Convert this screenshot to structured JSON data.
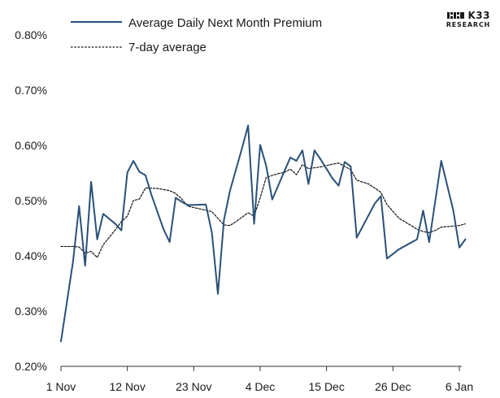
{
  "brand": {
    "name": "K33",
    "sub": "RESEARCH"
  },
  "colors": {
    "series1": "#2a5078",
    "series2": "#111111",
    "axis": "#333333"
  },
  "chart_data": {
    "type": "line",
    "title": "",
    "xlabel": "",
    "ylabel": "",
    "ylim": [
      0.002,
      0.008
    ],
    "y_ticks": [
      0.002,
      0.003,
      0.004,
      0.005,
      0.006,
      0.007,
      0.008
    ],
    "y_tick_labels": [
      "0.20%",
      "0.30%",
      "0.40%",
      "0.50%",
      "0.60%",
      "0.70%",
      "0.80%"
    ],
    "x_ticks": [
      1,
      12,
      23,
      34,
      45,
      56,
      67
    ],
    "x_tick_labels": [
      "1 Nov",
      "12 Nov",
      "23 Nov",
      "4 Dec",
      "15 Dec",
      "26 Dec",
      "6 Jan"
    ],
    "x_unit": "day index (1 Nov = 1)",
    "legend_position": "top-left",
    "series": [
      {
        "name": "Average Daily Next Month Premium",
        "style": "solid",
        "points": [
          [
            1,
            0.00245
          ],
          [
            3,
            0.0039
          ],
          [
            4,
            0.0049
          ],
          [
            5,
            0.00382
          ],
          [
            6,
            0.00534
          ],
          [
            7,
            0.0043
          ],
          [
            8,
            0.00476
          ],
          [
            10,
            0.00458
          ],
          [
            11,
            0.00446
          ],
          [
            12,
            0.00551
          ],
          [
            13,
            0.00572
          ],
          [
            14,
            0.00552
          ],
          [
            15,
            0.00546
          ],
          [
            16,
            0.0051
          ],
          [
            18,
            0.00448
          ],
          [
            19,
            0.00425
          ],
          [
            20,
            0.00505
          ],
          [
            21,
            0.00498
          ],
          [
            22,
            0.00492
          ],
          [
            25,
            0.00493
          ],
          [
            26,
            0.00442
          ],
          [
            27,
            0.00331
          ],
          [
            28,
            0.00465
          ],
          [
            29,
            0.00518
          ],
          [
            31,
            0.00595
          ],
          [
            32,
            0.00636
          ],
          [
            33,
            0.00458
          ],
          [
            34,
            0.00601
          ],
          [
            35,
            0.00563
          ],
          [
            36,
            0.00502
          ],
          [
            38,
            0.00553
          ],
          [
            39,
            0.00578
          ],
          [
            40,
            0.00572
          ],
          [
            41,
            0.00591
          ],
          [
            42,
            0.0053
          ],
          [
            43,
            0.00591
          ],
          [
            44,
            0.00575
          ],
          [
            46,
            0.0054
          ],
          [
            47,
            0.00527
          ],
          [
            48,
            0.0057
          ],
          [
            49,
            0.00562
          ],
          [
            50,
            0.00433
          ],
          [
            53,
            0.00495
          ],
          [
            54,
            0.00508
          ],
          [
            55,
            0.00395
          ],
          [
            57,
            0.00412
          ],
          [
            60,
            0.0043
          ],
          [
            61,
            0.00482
          ],
          [
            62,
            0.00425
          ],
          [
            64,
            0.00572
          ],
          [
            66,
            0.00482
          ],
          [
            67,
            0.00415
          ],
          [
            68,
            0.0043
          ]
        ]
      },
      {
        "name": "7-day average",
        "style": "dashed",
        "points": [
          [
            1,
            0.00417
          ],
          [
            3,
            0.00417
          ],
          [
            4,
            0.00416
          ],
          [
            5,
            0.00405
          ],
          [
            6,
            0.00408
          ],
          [
            7,
            0.00397
          ],
          [
            8,
            0.0042
          ],
          [
            10,
            0.00447
          ],
          [
            11,
            0.00462
          ],
          [
            12,
            0.00472
          ],
          [
            13,
            0.005
          ],
          [
            14,
            0.00503
          ],
          [
            15,
            0.00523
          ],
          [
            17,
            0.00522
          ],
          [
            19,
            0.00518
          ],
          [
            20,
            0.00513
          ],
          [
            21,
            0.00503
          ],
          [
            22,
            0.0049
          ],
          [
            24,
            0.00485
          ],
          [
            26,
            0.0048
          ],
          [
            27,
            0.00468
          ],
          [
            28,
            0.00456
          ],
          [
            29,
            0.00455
          ],
          [
            30,
            0.00462
          ],
          [
            32,
            0.00478
          ],
          [
            33,
            0.00472
          ],
          [
            34,
            0.00505
          ],
          [
            35,
            0.00542
          ],
          [
            37,
            0.00549
          ],
          [
            38,
            0.00551
          ],
          [
            39,
            0.00557
          ],
          [
            40,
            0.00547
          ],
          [
            41,
            0.00565
          ],
          [
            42,
            0.00558
          ],
          [
            44,
            0.00561
          ],
          [
            46,
            0.00566
          ],
          [
            47,
            0.00568
          ],
          [
            48,
            0.00562
          ],
          [
            49,
            0.00556
          ],
          [
            50,
            0.00537
          ],
          [
            52,
            0.0053
          ],
          [
            54,
            0.00515
          ],
          [
            55,
            0.00493
          ],
          [
            57,
            0.00468
          ],
          [
            59,
            0.00455
          ],
          [
            60,
            0.00448
          ],
          [
            61,
            0.00444
          ],
          [
            62,
            0.00442
          ],
          [
            63,
            0.00446
          ],
          [
            64,
            0.00452
          ],
          [
            66,
            0.00454
          ],
          [
            67,
            0.00455
          ],
          [
            68,
            0.00458
          ]
        ]
      }
    ]
  }
}
